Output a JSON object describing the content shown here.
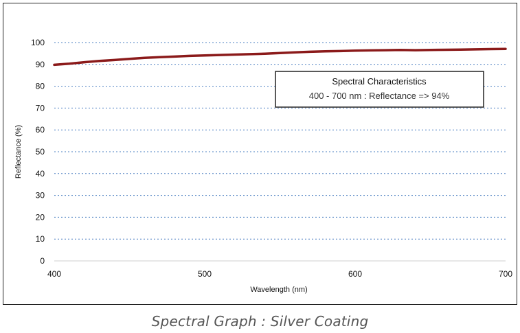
{
  "chart_data": {
    "type": "line",
    "title": "",
    "xlabel": "Wavelength (nm)",
    "ylabel": "Reflectance (%)",
    "xlim": [
      400,
      700
    ],
    "ylim": [
      0,
      100
    ],
    "xticks": [
      400,
      500,
      600,
      700
    ],
    "yticks": [
      0,
      10,
      20,
      30,
      40,
      50,
      60,
      70,
      80,
      90,
      100
    ],
    "grid": "horizontal dashed",
    "series": [
      {
        "color": "#8b1a1a",
        "x": [
          400,
          410,
          420,
          430,
          440,
          450,
          460,
          470,
          480,
          490,
          500,
          510,
          520,
          530,
          540,
          550,
          560,
          570,
          580,
          590,
          600,
          610,
          620,
          630,
          640,
          650,
          660,
          670,
          680,
          690,
          700
        ],
        "y": [
          89.8,
          90.3,
          91.0,
          91.6,
          92.0,
          92.5,
          93.0,
          93.3,
          93.6,
          93.9,
          94.1,
          94.3,
          94.5,
          94.7,
          94.9,
          95.2,
          95.5,
          95.8,
          96.0,
          96.1,
          96.3,
          96.4,
          96.5,
          96.6,
          96.5,
          96.6,
          96.7,
          96.8,
          96.9,
          97.0,
          97.1
        ]
      }
    ],
    "annotation": {
      "title": "Spectral Characteristics",
      "text": "400 - 700 nm : Reflectance => 94%"
    }
  },
  "caption": "Spectral Graph : Silver Coating"
}
